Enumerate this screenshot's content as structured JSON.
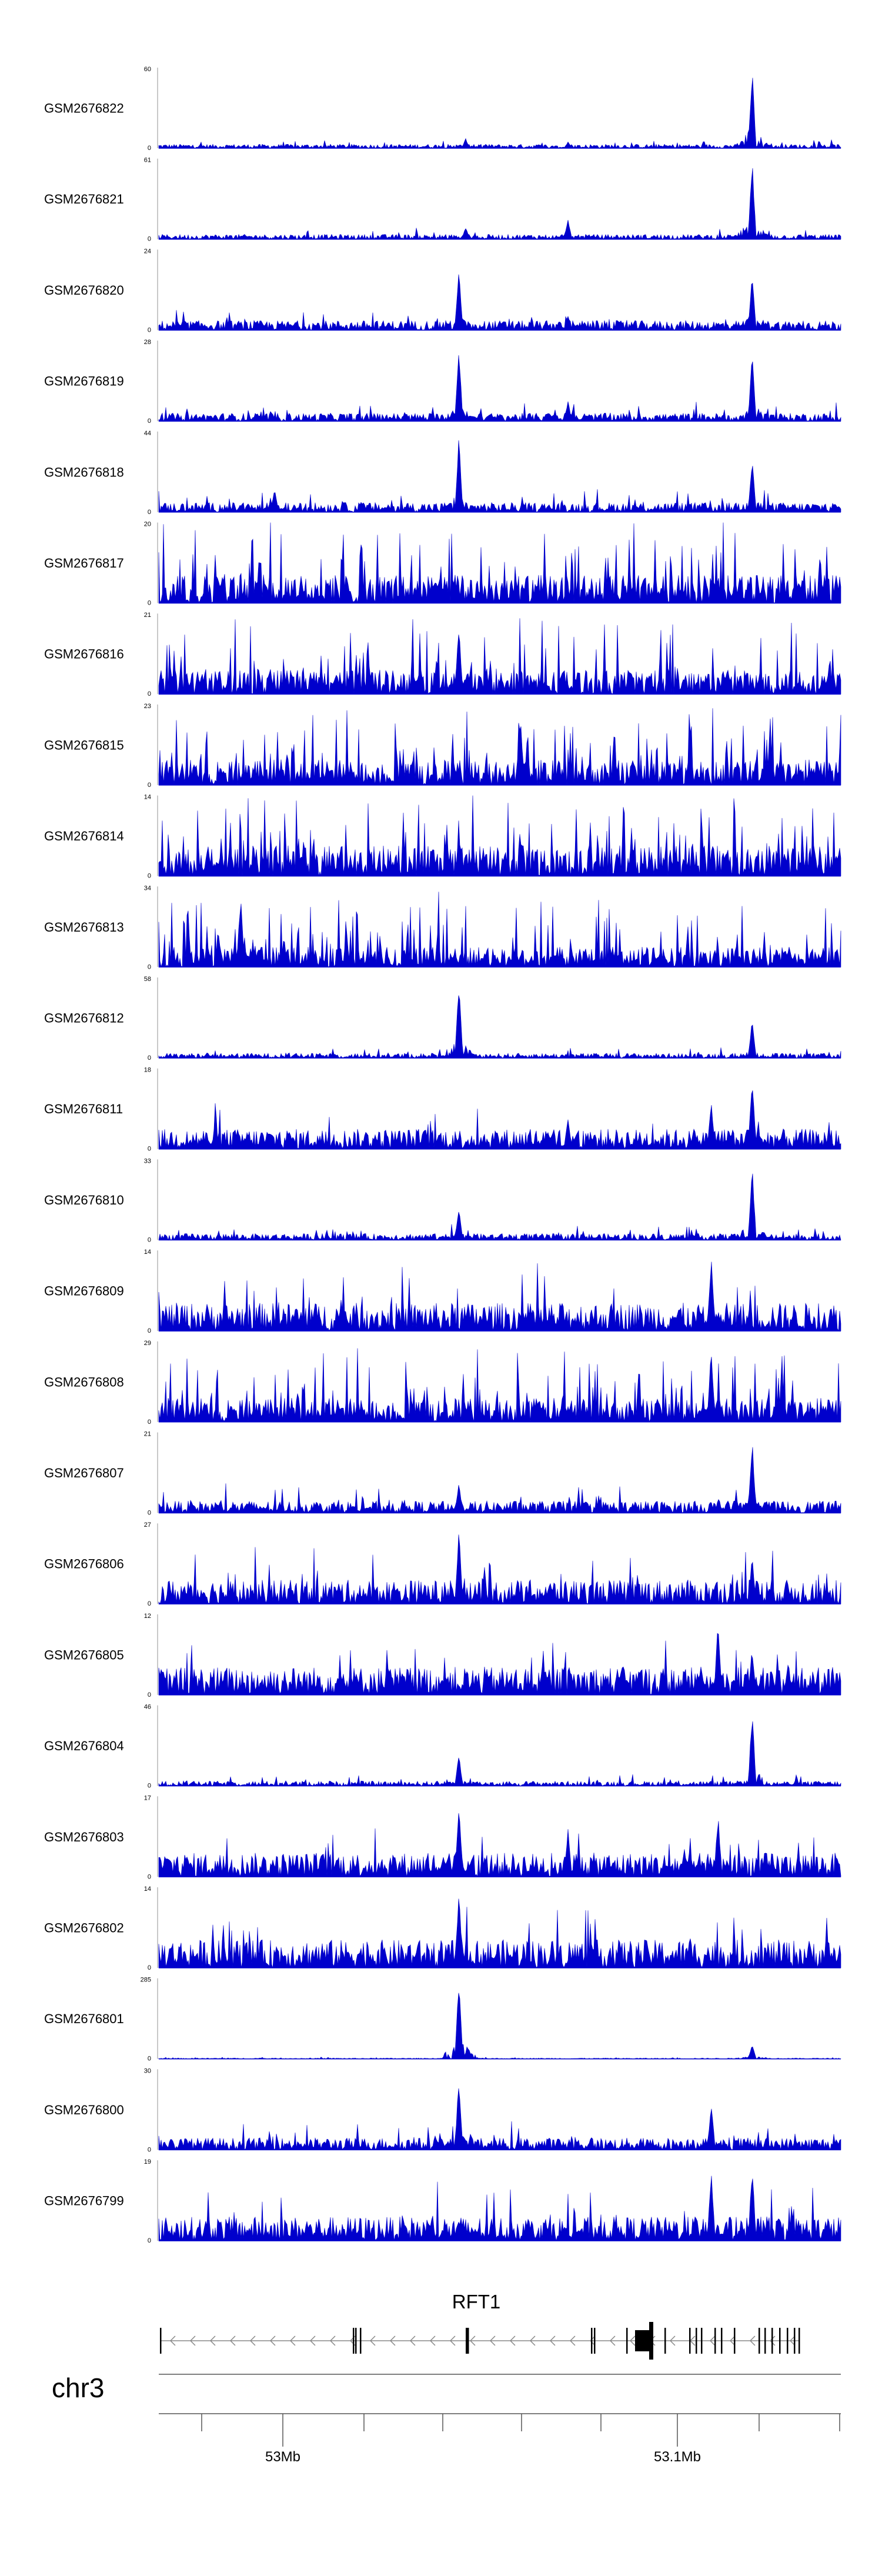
{
  "tracks": [
    {
      "name": "GSM2676822",
      "max": "60",
      "min": "0"
    },
    {
      "name": "GSM2676821",
      "max": "61",
      "min": "0"
    },
    {
      "name": "GSM2676820",
      "max": "24",
      "min": "0"
    },
    {
      "name": "GSM2676819",
      "max": "28",
      "min": "0"
    },
    {
      "name": "GSM2676818",
      "max": "44",
      "min": "0"
    },
    {
      "name": "GSM2676817",
      "max": "20",
      "min": "0"
    },
    {
      "name": "GSM2676816",
      "max": "21",
      "min": "0"
    },
    {
      "name": "GSM2676815",
      "max": "23",
      "min": "0"
    },
    {
      "name": "GSM2676814",
      "max": "14",
      "min": "0"
    },
    {
      "name": "GSM2676813",
      "max": "34",
      "min": "0"
    },
    {
      "name": "GSM2676812",
      "max": "58",
      "min": "0"
    },
    {
      "name": "GSM2676811",
      "max": "18",
      "min": "0"
    },
    {
      "name": "GSM2676810",
      "max": "33",
      "min": "0"
    },
    {
      "name": "GSM2676809",
      "max": "14",
      "min": "0"
    },
    {
      "name": "GSM2676808",
      "max": "29",
      "min": "0"
    },
    {
      "name": "GSM2676807",
      "max": "21",
      "min": "0"
    },
    {
      "name": "GSM2676806",
      "max": "27",
      "min": "0"
    },
    {
      "name": "GSM2676805",
      "max": "12",
      "min": "0"
    },
    {
      "name": "GSM2676804",
      "max": "46",
      "min": "0"
    },
    {
      "name": "GSM2676803",
      "max": "17",
      "min": "0"
    },
    {
      "name": "GSM2676802",
      "max": "14",
      "min": "0"
    },
    {
      "name": "GSM2676801",
      "max": "285",
      "min": "0"
    },
    {
      "name": "GSM2676800",
      "max": "30",
      "min": "0"
    },
    {
      "name": "GSM2676799",
      "max": "19",
      "min": "0"
    }
  ],
  "gene": {
    "name": "RFT1",
    "strand": "-"
  },
  "chromosome": "chr3",
  "axis": {
    "tick_labels": [
      "53Mb",
      "53.1Mb"
    ]
  },
  "colors": {
    "signal": "#0000cc",
    "gene": "#000000",
    "axis": "#555555"
  }
}
